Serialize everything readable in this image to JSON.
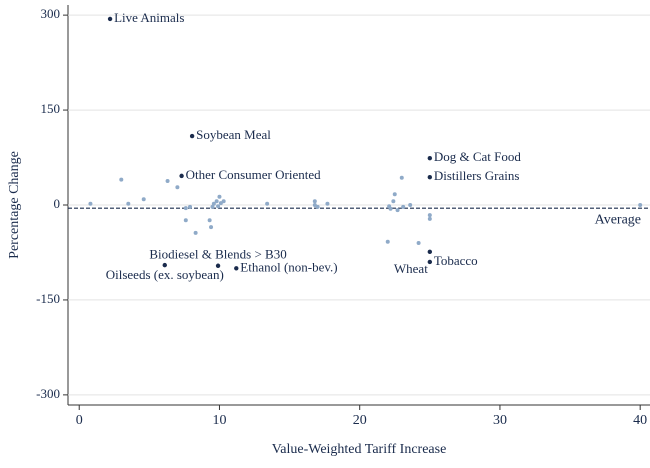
{
  "chart_data": {
    "type": "scatter",
    "x_label": "Value-Weighted Tariff Increase",
    "y_label": "Percentage Change",
    "xlim": [
      -0.8,
      40.7
    ],
    "ylim": [
      -316,
      316
    ],
    "xticks": [
      0,
      10,
      20,
      30,
      40
    ],
    "yticks": [
      -300,
      -150,
      0,
      150,
      300
    ],
    "grid": true,
    "point_color": "#8faac8",
    "label_color": "#1a2b4c",
    "average": {
      "label": "Average",
      "value": -5
    },
    "x": [
      2.2,
      8.05,
      7.3,
      25.0,
      25.0,
      9.9,
      6.1,
      11.2,
      25.0,
      25.0,
      0.8,
      3.0,
      3.5,
      4.6,
      6.3,
      7.0,
      7.6,
      7.6,
      7.9,
      8.3,
      9.3,
      9.4,
      9.5,
      9.6,
      9.8,
      9.9,
      10.0,
      10.1,
      10.3,
      13.4,
      16.8,
      16.8,
      17.0,
      17.7,
      22.0,
      22.1,
      22.2,
      22.4,
      22.5,
      23.0,
      22.7,
      23.1,
      23.6,
      24.2,
      25.0,
      25.0,
      40.0
    ],
    "y": [
      294,
      109,
      46,
      74,
      44,
      -96,
      -95,
      -100,
      -74,
      -90,
      2,
      40,
      2,
      9,
      38,
      28,
      -5,
      -24,
      -3,
      -44,
      -24,
      -35,
      -3,
      2,
      6,
      -2,
      13,
      3,
      6,
      2,
      0,
      6,
      -3,
      2,
      -58,
      -2,
      -6,
      6,
      17,
      43,
      -8,
      -3,
      0,
      -60,
      -16,
      -22,
      0
    ],
    "labels": [
      "Live Animals",
      "Soybean Meal",
      "Other Consumer Oriented",
      "Dog & Cat Food",
      "Distillers Grains",
      "Biodiesel & Blends > B30",
      "Oilseeds (ex. soybean)",
      "Ethanol (non-bev.)",
      "Wheat",
      "Tobacco",
      null,
      null,
      null,
      null,
      null,
      null,
      null,
      null,
      null,
      null,
      null,
      null,
      null,
      null,
      null,
      null,
      null,
      null,
      null,
      null,
      null,
      null,
      null,
      null,
      null,
      null,
      null,
      null,
      null,
      null,
      null,
      null,
      null,
      null,
      null,
      null,
      null
    ]
  }
}
